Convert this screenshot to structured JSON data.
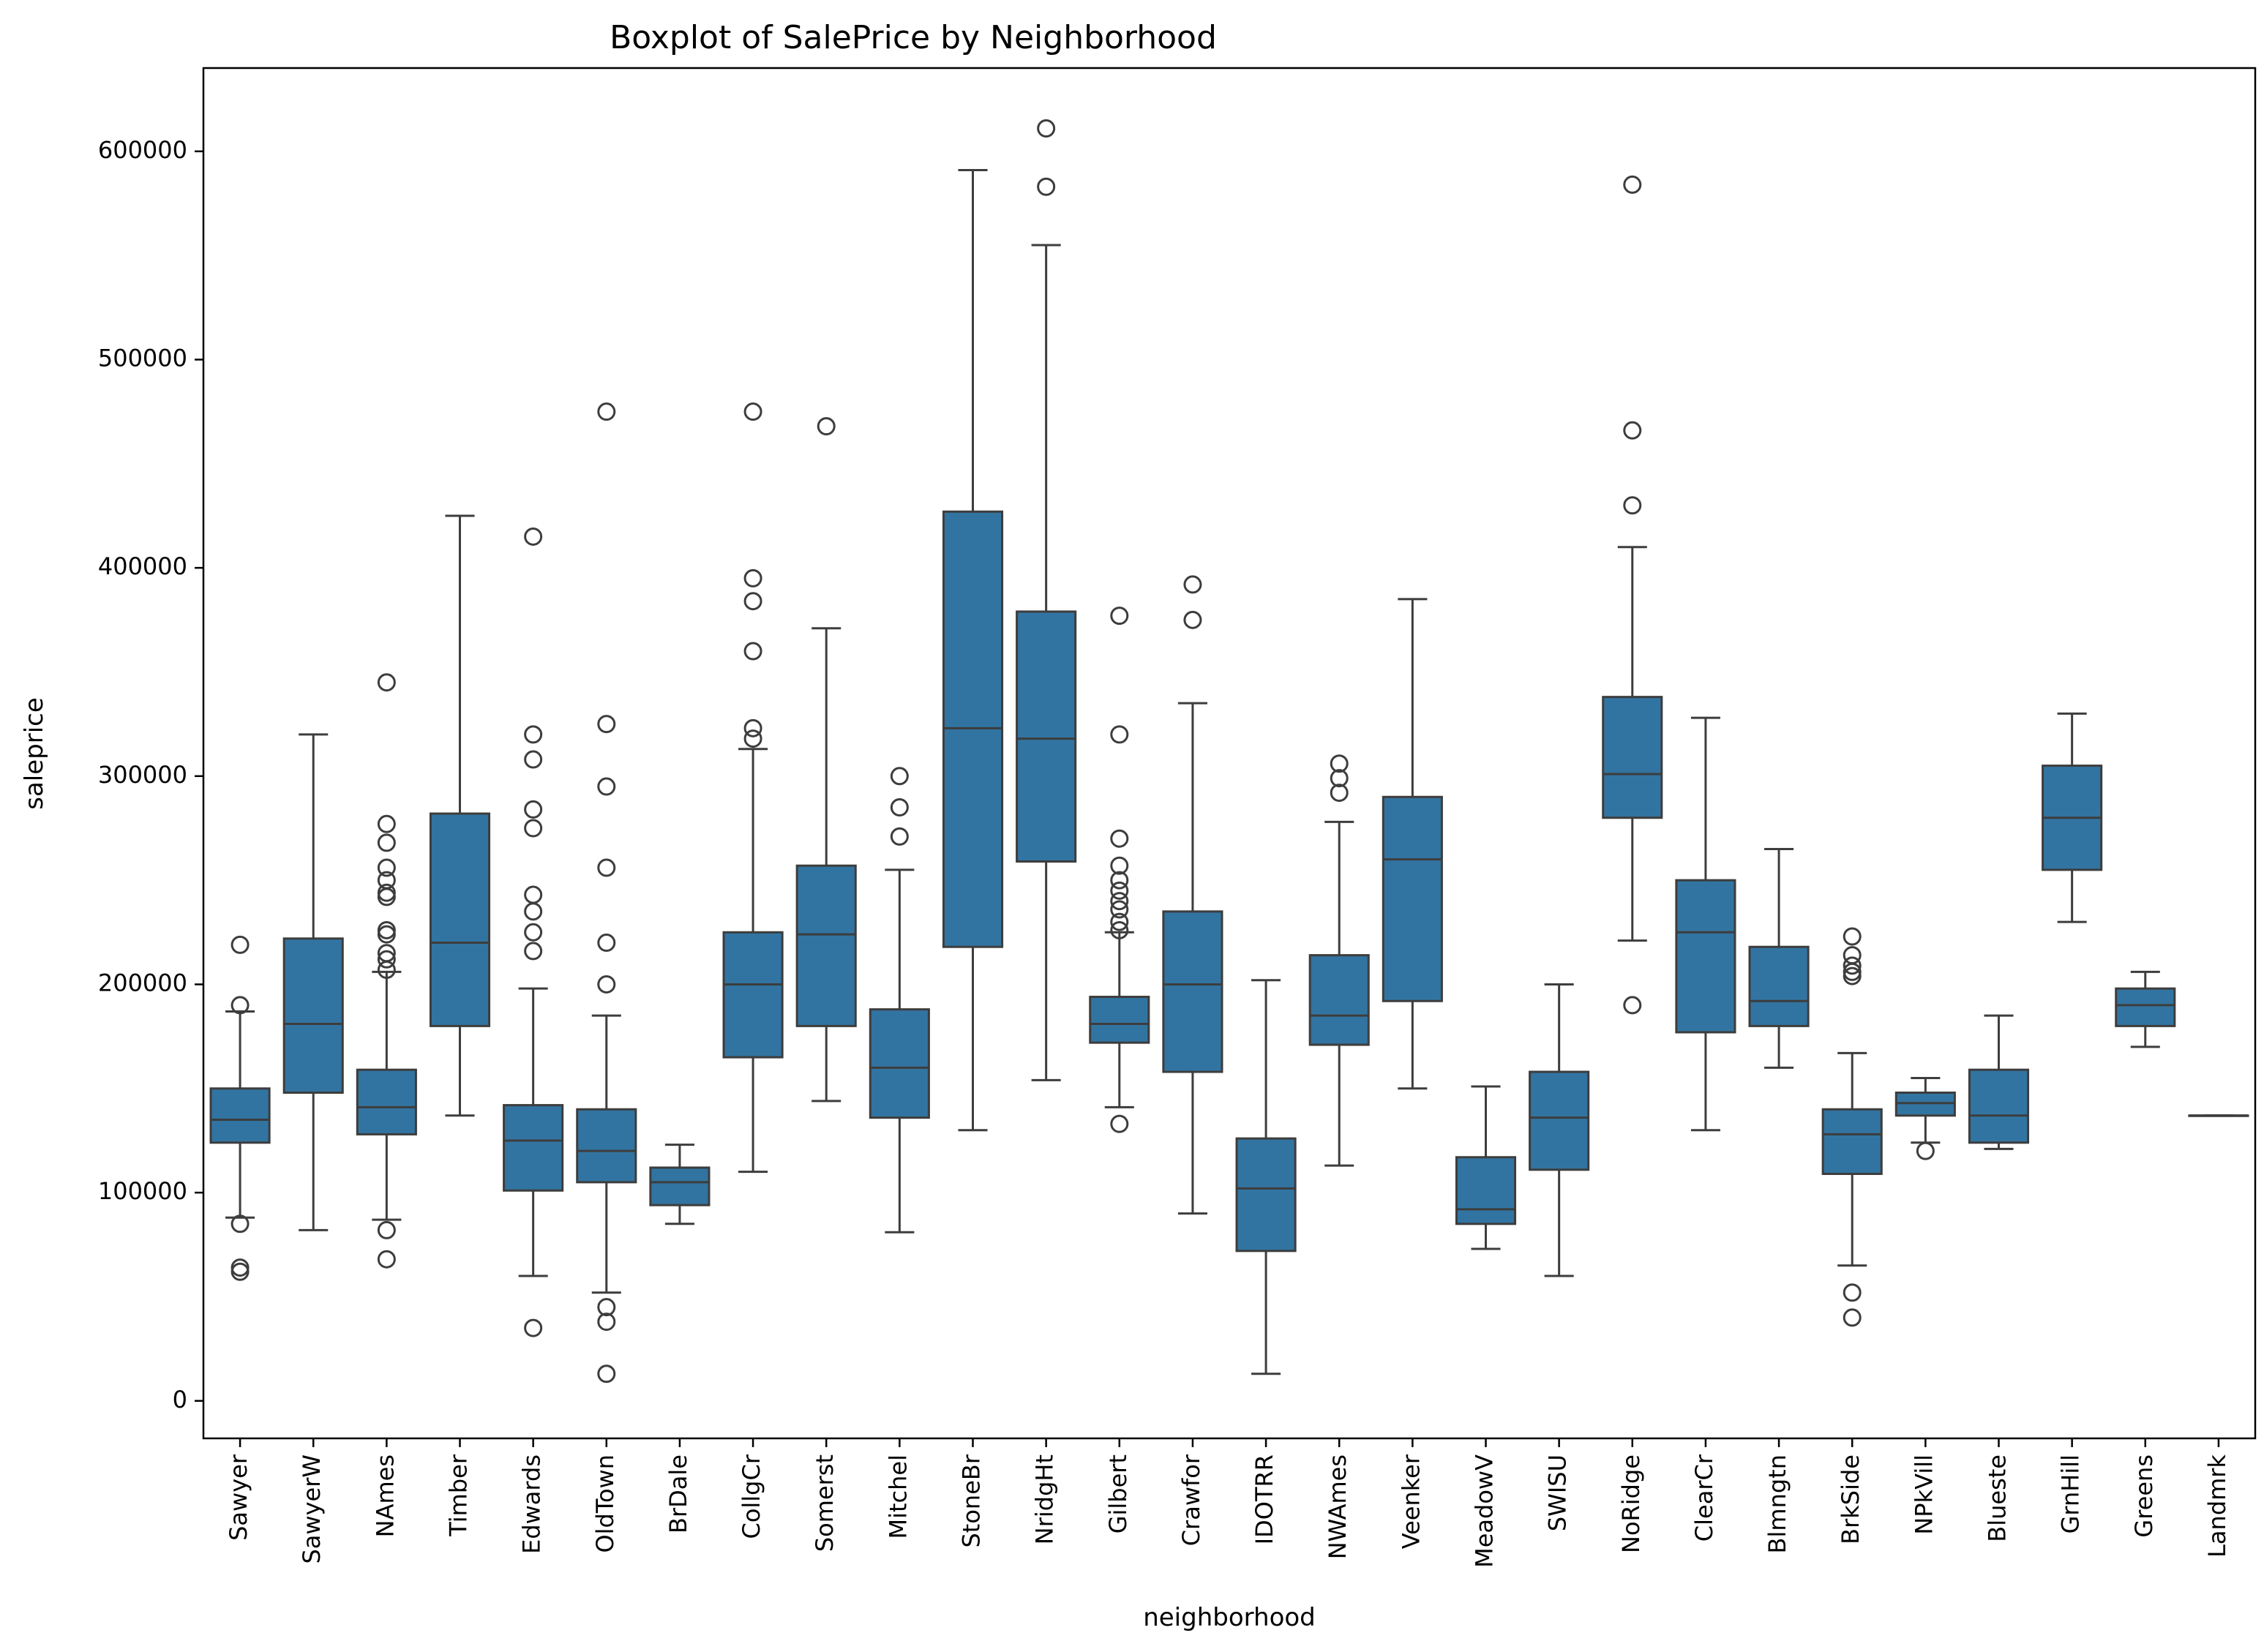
{
  "chart_data": {
    "type": "box",
    "title": "Boxplot of SalePrice by Neighborhood",
    "xlabel": "neighborhood",
    "ylabel": "saleprice",
    "ylim": [
      -18000,
      640000
    ],
    "yticks": [
      0,
      100000,
      200000,
      300000,
      400000,
      500000,
      600000
    ],
    "grid": false,
    "legend": "none",
    "box_color": "#3274a1",
    "line_color": "#3d3d3d",
    "categories": [
      "Sawyer",
      "SawyerW",
      "NAmes",
      "Timber",
      "Edwards",
      "OldTown",
      "BrDale",
      "CollgCr",
      "Somerst",
      "Mitchel",
      "StoneBr",
      "NridgHt",
      "Gilbert",
      "Crawfor",
      "IDOTRR",
      "NWAmes",
      "Veenker",
      "MeadowV",
      "SWISU",
      "NoRidge",
      "ClearCr",
      "Blmngtn",
      "BrkSide",
      "NPkVill",
      "Blueste",
      "GrnHill",
      "Greens",
      "Landmrk"
    ],
    "boxes": [
      {
        "category": "Sawyer",
        "whisker_low": 88000,
        "q1": 124000,
        "median": 135000,
        "q3": 150000,
        "whisker_high": 187000,
        "outliers": [
          219000,
          190000,
          85000,
          64000,
          62000
        ]
      },
      {
        "category": "SawyerW",
        "whisker_low": 82000,
        "q1": 148000,
        "median": 181000,
        "q3": 222000,
        "whisker_high": 320000,
        "outliers": []
      },
      {
        "category": "NAmes",
        "whisker_low": 87000,
        "q1": 128000,
        "median": 141000,
        "q3": 159000,
        "whisker_high": 206000,
        "outliers": [
          345000,
          277000,
          268000,
          256000,
          250000,
          244000,
          242000,
          226000,
          224000,
          215000,
          212000,
          207000,
          82000,
          68000
        ]
      },
      {
        "category": "Timber",
        "whisker_low": 137000,
        "q1": 180000,
        "median": 220000,
        "q3": 282000,
        "whisker_high": 425000,
        "outliers": []
      },
      {
        "category": "Edwards",
        "whisker_low": 60000,
        "q1": 101000,
        "median": 125000,
        "q3": 142000,
        "whisker_high": 198000,
        "outliers": [
          415000,
          320000,
          308000,
          284000,
          275000,
          243000,
          235000,
          225000,
          216000,
          35000
        ]
      },
      {
        "category": "OldTown",
        "whisker_low": 52000,
        "q1": 105000,
        "median": 120000,
        "q3": 140000,
        "whisker_high": 185000,
        "outliers": [
          475000,
          325000,
          295000,
          256000,
          220000,
          200000,
          45000,
          38000,
          13000
        ]
      },
      {
        "category": "BrDale",
        "whisker_low": 85000,
        "q1": 94000,
        "median": 105000,
        "q3": 112000,
        "whisker_high": 123000,
        "outliers": []
      },
      {
        "category": "CollgCr",
        "whisker_low": 110000,
        "q1": 165000,
        "median": 200000,
        "q3": 225000,
        "whisker_high": 313000,
        "outliers": [
          475000,
          395000,
          384000,
          360000,
          323000,
          318000
        ]
      },
      {
        "category": "Somerst",
        "whisker_low": 144000,
        "q1": 180000,
        "median": 224000,
        "q3": 257000,
        "whisker_high": 371000,
        "outliers": [
          468000
        ]
      },
      {
        "category": "Mitchel",
        "whisker_low": 81000,
        "q1": 136000,
        "median": 160000,
        "q3": 188000,
        "whisker_high": 255000,
        "outliers": [
          300000,
          285000,
          271000
        ]
      },
      {
        "category": "StoneBr",
        "whisker_low": 130000,
        "q1": 218000,
        "median": 323000,
        "q3": 427000,
        "whisker_high": 591000,
        "outliers": []
      },
      {
        "category": "NridgHt",
        "whisker_low": 154000,
        "q1": 259000,
        "median": 318000,
        "q3": 379000,
        "whisker_high": 555000,
        "outliers": [
          611000,
          583000
        ]
      },
      {
        "category": "Gilbert",
        "whisker_low": 141000,
        "q1": 172000,
        "median": 181000,
        "q3": 194000,
        "whisker_high": 225000,
        "outliers": [
          377000,
          320000,
          270000,
          257000,
          250000,
          245000,
          240000,
          236000,
          230000,
          226000,
          133000
        ]
      },
      {
        "category": "Crawfor",
        "whisker_low": 90000,
        "q1": 158000,
        "median": 200000,
        "q3": 235000,
        "whisker_high": 335000,
        "outliers": [
          392000,
          375000
        ]
      },
      {
        "category": "IDOTRR",
        "whisker_low": 13000,
        "q1": 72000,
        "median": 102000,
        "q3": 126000,
        "whisker_high": 202000,
        "outliers": []
      },
      {
        "category": "NWAmes",
        "whisker_low": 113000,
        "q1": 171000,
        "median": 185000,
        "q3": 214000,
        "whisker_high": 278000,
        "outliers": [
          306000,
          299000,
          292000
        ]
      },
      {
        "category": "Veenker",
        "whisker_low": 150000,
        "q1": 192000,
        "median": 260000,
        "q3": 290000,
        "whisker_high": 385000,
        "outliers": []
      },
      {
        "category": "MeadowV",
        "whisker_low": 73000,
        "q1": 85000,
        "median": 92000,
        "q3": 117000,
        "whisker_high": 151000,
        "outliers": []
      },
      {
        "category": "SWISU",
        "whisker_low": 60000,
        "q1": 111000,
        "median": 136000,
        "q3": 158000,
        "whisker_high": 200000,
        "outliers": []
      },
      {
        "category": "NoRidge",
        "whisker_low": 221000,
        "q1": 280000,
        "median": 301000,
        "q3": 338000,
        "whisker_high": 410000,
        "outliers": [
          584000,
          466000,
          430000,
          190000
        ]
      },
      {
        "category": "ClearCr",
        "whisker_low": 130000,
        "q1": 177000,
        "median": 225000,
        "q3": 250000,
        "whisker_high": 328000,
        "outliers": []
      },
      {
        "category": "Blmngtn",
        "whisker_low": 160000,
        "q1": 180000,
        "median": 192000,
        "q3": 218000,
        "whisker_high": 265000,
        "outliers": []
      },
      {
        "category": "BrkSide",
        "whisker_low": 65000,
        "q1": 109000,
        "median": 128000,
        "q3": 140000,
        "whisker_high": 167000,
        "outliers": [
          223000,
          214000,
          209000,
          206000,
          204000,
          52000,
          40000
        ]
      },
      {
        "category": "NPkVill",
        "whisker_low": 124000,
        "q1": 137000,
        "median": 143000,
        "q3": 148000,
        "whisker_high": 155000,
        "outliers": [
          120000
        ]
      },
      {
        "category": "Blueste",
        "whisker_low": 121000,
        "q1": 124000,
        "median": 137000,
        "q3": 159000,
        "whisker_high": 185000,
        "outliers": []
      },
      {
        "category": "GrnHill",
        "whisker_low": 230000,
        "q1": 255000,
        "median": 280000,
        "q3": 305000,
        "whisker_high": 330000,
        "outliers": []
      },
      {
        "category": "Greens",
        "whisker_low": 170000,
        "q1": 180000,
        "median": 190000,
        "q3": 198000,
        "whisker_high": 206000,
        "outliers": []
      },
      {
        "category": "Landmrk",
        "whisker_low": 137000,
        "q1": 137000,
        "median": 137000,
        "q3": 137000,
        "whisker_high": 137000,
        "outliers": []
      }
    ]
  }
}
